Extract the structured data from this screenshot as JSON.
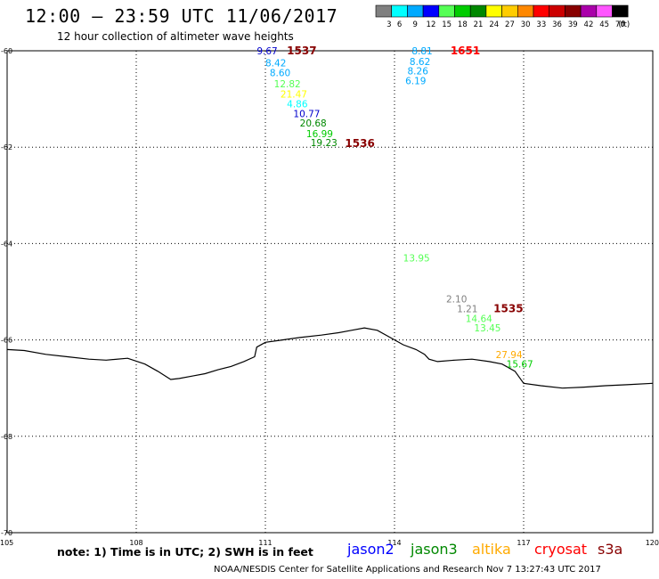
{
  "header": {
    "title": "12:00 – 23:59 UTC 11/06/2017",
    "subtitle": "12 hour collection of altimeter wave heights"
  },
  "legend": {
    "unit": "(ft)",
    "bins": [
      {
        "label": "3",
        "color": "#808080"
      },
      {
        "label": "6",
        "color": "#00ffff"
      },
      {
        "label": "9",
        "color": "#00aaff"
      },
      {
        "label": "12",
        "color": "#0000ff"
      },
      {
        "label": "15",
        "color": "#55ff55"
      },
      {
        "label": "18",
        "color": "#00cc00"
      },
      {
        "label": "21",
        "color": "#008800"
      },
      {
        "label": "24",
        "color": "#ffff00"
      },
      {
        "label": "27",
        "color": "#ffcc00"
      },
      {
        "label": "30",
        "color": "#ff8800"
      },
      {
        "label": "33",
        "color": "#ff0000"
      },
      {
        "label": "36",
        "color": "#cc0000"
      },
      {
        "label": "39",
        "color": "#880000"
      },
      {
        "label": "42",
        "color": "#aa00aa"
      },
      {
        "label": "45",
        "color": "#ff55ff"
      },
      {
        "label": "70",
        "color": "#000000"
      }
    ]
  },
  "axes": {
    "lat_labels": [
      "-60",
      "-62",
      "-64",
      "-66",
      "-68",
      "-70"
    ],
    "lon_labels": [
      "105",
      "108",
      "111",
      "114",
      "117",
      "120"
    ]
  },
  "observations": [
    {
      "text": "9.67",
      "color": "#0000cc",
      "lon": 110.8,
      "lat": -60.0
    },
    {
      "text": "1537",
      "color": "#880000",
      "lon": 111.5,
      "lat": -60.0,
      "bold": true
    },
    {
      "text": "8.42",
      "color": "#00aaff",
      "lon": 111.0,
      "lat": -60.25
    },
    {
      "text": "8.60",
      "color": "#00aaff",
      "lon": 111.1,
      "lat": -60.45
    },
    {
      "text": "12.82",
      "color": "#55ff55",
      "lon": 111.2,
      "lat": -60.68
    },
    {
      "text": "21.47",
      "color": "#ffff00",
      "lon": 111.35,
      "lat": -60.9
    },
    {
      "text": "4.86",
      "color": "#00ffff",
      "lon": 111.5,
      "lat": -61.1
    },
    {
      "text": "10.77",
      "color": "#0000cc",
      "lon": 111.65,
      "lat": -61.3
    },
    {
      "text": "20.68",
      "color": "#008800",
      "lon": 111.8,
      "lat": -61.5
    },
    {
      "text": "16.99",
      "color": "#00cc00",
      "lon": 111.95,
      "lat": -61.72
    },
    {
      "text": "19.23",
      "color": "#008800",
      "lon": 112.05,
      "lat": -61.9
    },
    {
      "text": "1536",
      "color": "#880000",
      "lon": 112.85,
      "lat": -61.92,
      "bold": true
    },
    {
      "text": "8.81",
      "color": "#00aaff",
      "lon": 114.4,
      "lat": -60.0
    },
    {
      "text": "1651",
      "color": "#ff0000",
      "lon": 115.3,
      "lat": -60.0,
      "bold": true
    },
    {
      "text": "8.62",
      "color": "#00aaff",
      "lon": 114.35,
      "lat": -60.22
    },
    {
      "text": "8.26",
      "color": "#00aaff",
      "lon": 114.3,
      "lat": -60.42
    },
    {
      "text": "6.19",
      "color": "#00aaff",
      "lon": 114.25,
      "lat": -60.62
    },
    {
      "text": "13.95",
      "color": "#55ff55",
      "lon": 114.2,
      "lat": -64.3
    },
    {
      "text": "2.10",
      "color": "#808080",
      "lon": 115.2,
      "lat": -65.15
    },
    {
      "text": "1.21",
      "color": "#808080",
      "lon": 115.45,
      "lat": -65.35
    },
    {
      "text": "1535",
      "color": "#880000",
      "lon": 116.3,
      "lat": -65.35,
      "bold": true
    },
    {
      "text": "14.64",
      "color": "#55ff55",
      "lon": 115.65,
      "lat": -65.55
    },
    {
      "text": "13.45",
      "color": "#55ff55",
      "lon": 115.85,
      "lat": -65.75
    },
    {
      "text": "27.94",
      "color": "#ffaa00",
      "lon": 116.35,
      "lat": -66.3
    },
    {
      "text": "15.67",
      "color": "#00cc00",
      "lon": 116.6,
      "lat": -66.5
    }
  ],
  "coastline": [
    [
      105.0,
      -66.2
    ],
    [
      105.4,
      -66.22
    ],
    [
      105.9,
      -66.3
    ],
    [
      106.4,
      -66.35
    ],
    [
      106.9,
      -66.4
    ],
    [
      107.3,
      -66.42
    ],
    [
      107.8,
      -66.38
    ],
    [
      108.2,
      -66.5
    ],
    [
      108.5,
      -66.65
    ],
    [
      108.8,
      -66.82
    ],
    [
      109.0,
      -66.8
    ],
    [
      109.3,
      -66.75
    ],
    [
      109.6,
      -66.7
    ],
    [
      109.9,
      -66.62
    ],
    [
      110.2,
      -66.55
    ],
    [
      110.5,
      -66.45
    ],
    [
      110.75,
      -66.35
    ],
    [
      110.8,
      -66.15
    ],
    [
      111.0,
      -66.05
    ],
    [
      111.4,
      -66.0
    ],
    [
      111.8,
      -65.95
    ],
    [
      112.3,
      -65.9
    ],
    [
      112.7,
      -65.85
    ],
    [
      113.0,
      -65.8
    ],
    [
      113.3,
      -65.75
    ],
    [
      113.6,
      -65.8
    ],
    [
      113.9,
      -65.95
    ],
    [
      114.2,
      -66.1
    ],
    [
      114.5,
      -66.2
    ],
    [
      114.7,
      -66.3
    ],
    [
      114.8,
      -66.4
    ],
    [
      115.0,
      -66.45
    ],
    [
      115.4,
      -66.42
    ],
    [
      115.8,
      -66.4
    ],
    [
      116.2,
      -66.45
    ],
    [
      116.5,
      -66.5
    ],
    [
      116.8,
      -66.65
    ],
    [
      117.0,
      -66.9
    ],
    [
      117.4,
      -66.95
    ],
    [
      117.9,
      -67.0
    ],
    [
      118.4,
      -66.98
    ],
    [
      118.9,
      -66.95
    ],
    [
      119.4,
      -66.93
    ],
    [
      120.0,
      -66.9
    ]
  ],
  "note": "note:  1) Time is in UTC;  2) SWH is in feet",
  "satellites": [
    {
      "name": "jason2",
      "color": "#0000ff"
    },
    {
      "name": "jason3",
      "color": "#008800"
    },
    {
      "name": "altika",
      "color": "#ffaa00"
    },
    {
      "name": "cryosat",
      "color": "#ff0000"
    },
    {
      "name": "s3a",
      "color": "#880000"
    }
  ],
  "footer": "NOAA/NESDIS Center for Satellite Applications and Research    Nov  7 13:27:43 UTC 2017"
}
